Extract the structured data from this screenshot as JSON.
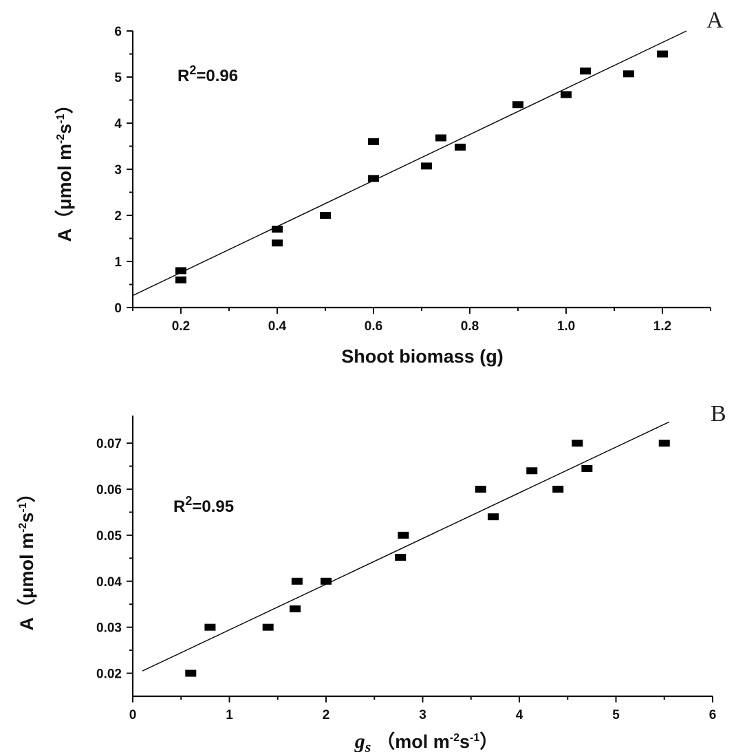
{
  "chart_data": [
    {
      "type": "scatter",
      "panel_label": "A",
      "annotation": {
        "r2_base": "R",
        "r2_sup": "2",
        "r2_value": "=0.96"
      },
      "xlabel": "Shoot biomass (g)",
      "ylabel": {
        "main": "A（μmol m",
        "sup1": "-2",
        "mid": "s",
        "sup2": "-1",
        "end": "）"
      },
      "xlim": [
        0.1,
        1.3
      ],
      "ylim": [
        0,
        6
      ],
      "xticks": [
        0.2,
        0.4,
        0.6,
        0.8,
        1.0,
        1.2
      ],
      "xtick_labels": [
        "0.2",
        "0.4",
        "0.6",
        "0.8",
        "1.0",
        "1.2"
      ],
      "yticks": [
        0,
        1,
        2,
        3,
        4,
        5,
        6
      ],
      "ytick_labels": [
        "0",
        "1",
        "2",
        "3",
        "4",
        "5",
        "6"
      ],
      "points": [
        [
          0.2,
          0.8
        ],
        [
          0.2,
          0.6
        ],
        [
          0.4,
          1.7
        ],
        [
          0.4,
          1.4
        ],
        [
          0.5,
          2.0
        ],
        [
          0.6,
          3.6
        ],
        [
          0.6,
          2.8
        ],
        [
          0.71,
          3.07
        ],
        [
          0.74,
          3.68
        ],
        [
          0.78,
          3.48
        ],
        [
          0.9,
          4.4
        ],
        [
          1.0,
          4.62
        ],
        [
          1.04,
          5.13
        ],
        [
          1.13,
          5.07
        ],
        [
          1.2,
          5.5
        ]
      ],
      "fit_line": {
        "x": [
          0.1,
          1.25
        ],
        "y": [
          0.26,
          6.0
        ]
      }
    },
    {
      "type": "scatter",
      "panel_label": "B",
      "annotation": {
        "r2_base": "R",
        "r2_sup": "2",
        "r2_value": "=0.95"
      },
      "xlabel": {
        "main": "g",
        "sub": "s",
        "unit": "（mol m",
        "sup1": "-2",
        "mid": "s",
        "sup2": "-1",
        "end": "）"
      },
      "ylabel": {
        "main": "A（μmol m",
        "sup1": "-2",
        "mid": "s",
        "sup2": "-1",
        "end": "）"
      },
      "xlim": [
        0,
        6
      ],
      "ylim": [
        0.015,
        0.076
      ],
      "xticks": [
        0,
        1,
        2,
        3,
        4,
        5,
        6
      ],
      "xtick_labels": [
        "0",
        "1",
        "2",
        "3",
        "4",
        "5",
        "6"
      ],
      "yticks": [
        0.02,
        0.03,
        0.04,
        0.05,
        0.06,
        0.07
      ],
      "ytick_labels": [
        "0.02",
        "0.03",
        "0.04",
        "0.05",
        "0.06",
        "0.07"
      ],
      "points": [
        [
          0.6,
          0.02
        ],
        [
          0.8,
          0.03
        ],
        [
          1.4,
          0.03
        ],
        [
          1.68,
          0.034
        ],
        [
          1.7,
          0.04
        ],
        [
          2.0,
          0.04
        ],
        [
          2.77,
          0.0452
        ],
        [
          2.8,
          0.05
        ],
        [
          3.6,
          0.06
        ],
        [
          3.73,
          0.054
        ],
        [
          4.13,
          0.064
        ],
        [
          4.4,
          0.06
        ],
        [
          4.6,
          0.07
        ],
        [
          4.7,
          0.0645
        ],
        [
          5.5,
          0.07
        ]
      ],
      "fit_line": {
        "x": [
          0.1,
          5.55
        ],
        "y": [
          0.0205,
          0.0746
        ]
      }
    }
  ]
}
